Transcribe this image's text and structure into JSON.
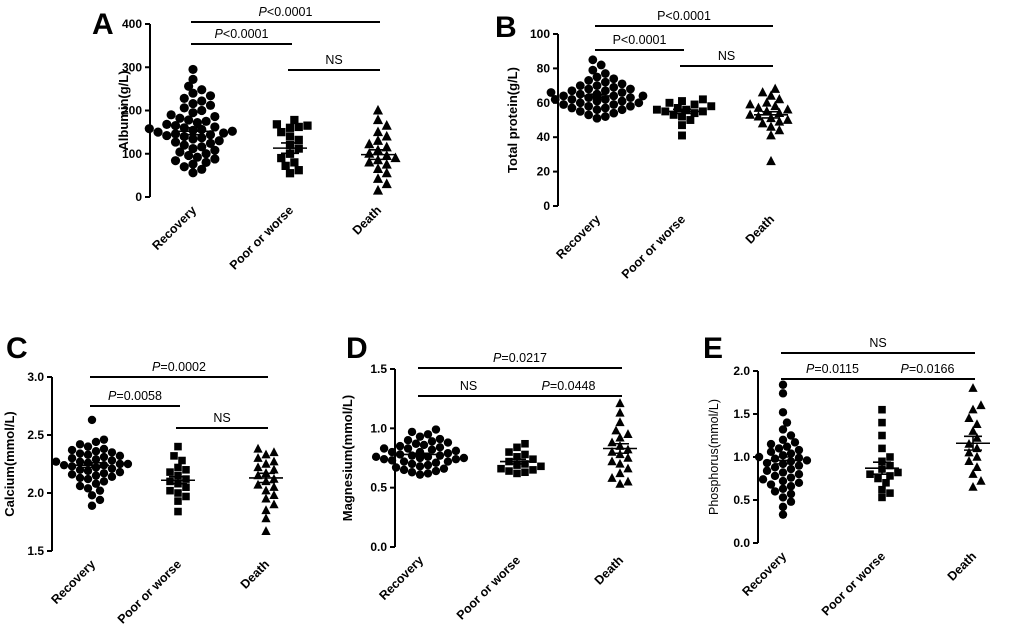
{
  "chart_data": [
    {
      "type": "scatter",
      "panel": "A",
      "ylabel": "Albumin(g/L)",
      "ylim": [
        0,
        400
      ],
      "yticks": [
        0,
        100,
        200,
        300,
        400
      ],
      "ytick_labels": [
        "0",
        "100",
        "200",
        "300",
        "400"
      ],
      "categories": [
        "Recovery",
        "Poor or worse",
        "Death"
      ],
      "means": [
        152,
        113,
        98
      ],
      "sems": [
        8,
        12,
        11
      ],
      "groups": [
        {
          "name": "Recovery",
          "marker": "circle",
          "values": [
            295,
            272,
            256,
            248,
            240,
            234,
            228,
            222,
            216,
            212,
            206,
            200,
            195,
            190,
            186,
            182,
            178,
            175,
            172,
            168,
            165,
            162,
            160,
            158,
            156,
            154,
            152,
            150,
            148,
            146,
            144,
            142,
            140,
            137,
            134,
            130,
            127,
            124,
            120,
            116,
            112,
            108,
            104,
            100,
            96,
            92,
            88,
            84,
            80,
            76,
            70,
            64,
            56
          ]
        },
        {
          "name": "Poor or worse",
          "marker": "square",
          "values": [
            178,
            168,
            165,
            162,
            160,
            150,
            140,
            132,
            120,
            112,
            100,
            90,
            80,
            72,
            62,
            55
          ]
        },
        {
          "name": "Death",
          "marker": "triangle",
          "values": [
            200,
            178,
            165,
            150,
            140,
            130,
            122,
            115,
            108,
            100,
            95,
            90,
            85,
            80,
            75,
            65,
            55,
            42,
            30,
            15
          ]
        }
      ],
      "comparisons": [
        {
          "from": 0,
          "to": 2,
          "label_prefix": "P",
          "label": "<0.0001"
        },
        {
          "from": 0,
          "to": 1,
          "label_prefix": "P",
          "label": "<0.0001"
        },
        {
          "from": 1,
          "to": 2,
          "label_prefix": "",
          "label": "NS"
        }
      ]
    },
    {
      "type": "scatter",
      "panel": "B",
      "ylabel": "Total protein(g/L)",
      "ylim": [
        0,
        100
      ],
      "yticks": [
        0,
        20,
        40,
        60,
        80,
        100
      ],
      "ytick_labels": [
        "0",
        "20",
        "40",
        "60",
        "80",
        "100"
      ],
      "categories": [
        "Recovery",
        "Poor or worse",
        "Death"
      ],
      "means": [
        64,
        55,
        53
      ],
      "sems": [
        1,
        1.2,
        1.8
      ],
      "groups": [
        {
          "name": "Recovery",
          "marker": "circle",
          "values": [
            85,
            82,
            79,
            77,
            75,
            74,
            73,
            72,
            71,
            70,
            70,
            69,
            68,
            68,
            67,
            67,
            66,
            66,
            65,
            65,
            65,
            64,
            64,
            64,
            63,
            63,
            63,
            62,
            62,
            62,
            61,
            61,
            60,
            60,
            59,
            59,
            58,
            58,
            57,
            57,
            56,
            56,
            55,
            54,
            53,
            52,
            51
          ]
        },
        {
          "name": "Poor or worse",
          "marker": "square",
          "values": [
            62,
            61,
            60,
            59,
            58,
            57,
            56,
            56,
            55,
            55,
            54,
            53,
            52,
            50,
            47,
            41
          ]
        },
        {
          "name": "Death",
          "marker": "triangle",
          "values": [
            68,
            66,
            64,
            62,
            60,
            59,
            58,
            57,
            56,
            55,
            54,
            53,
            52,
            51,
            50,
            49,
            48,
            46,
            44,
            41,
            26
          ]
        }
      ],
      "comparisons": [
        {
          "from": 0,
          "to": 2,
          "label_prefix": "",
          "label": "P<0.0001"
        },
        {
          "from": 0,
          "to": 1,
          "label_prefix": "",
          "label": "P<0.0001"
        },
        {
          "from": 1,
          "to": 2,
          "label_prefix": "",
          "label": "NS"
        }
      ]
    },
    {
      "type": "scatter",
      "panel": "C",
      "ylabel": "Calcium(mmol/L)",
      "ylim": [
        1.5,
        3.0
      ],
      "yticks": [
        1.5,
        2.0,
        2.5,
        3.0
      ],
      "ytick_labels": [
        "1.5",
        "2.0",
        "2.5",
        "3.0"
      ],
      "categories": [
        "Recovery",
        "Poor or worse",
        "Death"
      ],
      "means": [
        2.24,
        2.11,
        2.13
      ],
      "sems": [
        0.02,
        0.03,
        0.04
      ],
      "groups": [
        {
          "name": "Recovery",
          "marker": "circle",
          "values": [
            2.63,
            2.46,
            2.44,
            2.42,
            2.4,
            2.38,
            2.37,
            2.36,
            2.35,
            2.34,
            2.33,
            2.32,
            2.31,
            2.3,
            2.29,
            2.28,
            2.27,
            2.27,
            2.26,
            2.25,
            2.25,
            2.24,
            2.24,
            2.23,
            2.22,
            2.21,
            2.2,
            2.19,
            2.18,
            2.17,
            2.16,
            2.15,
            2.14,
            2.13,
            2.12,
            2.1,
            2.08,
            2.06,
            2.04,
            2.02,
            1.98,
            1.94,
            1.89
          ]
        },
        {
          "name": "Poor or worse",
          "marker": "square",
          "values": [
            2.4,
            2.32,
            2.28,
            2.22,
            2.2,
            2.18,
            2.15,
            2.12,
            2.1,
            2.08,
            2.05,
            2.02,
            2.0,
            1.97,
            1.93,
            1.84
          ]
        },
        {
          "name": "Death",
          "marker": "triangle",
          "values": [
            2.38,
            2.35,
            2.33,
            2.3,
            2.27,
            2.25,
            2.22,
            2.2,
            2.17,
            2.15,
            2.12,
            2.1,
            2.07,
            2.05,
            2.02,
            1.98,
            1.95,
            1.9,
            1.85,
            1.78,
            1.67
          ]
        }
      ],
      "comparisons": [
        {
          "from": 0,
          "to": 2,
          "label_prefix": "P",
          "label": "=0.0002"
        },
        {
          "from": 0,
          "to": 1,
          "label_prefix": "P",
          "label": "=0.0058"
        },
        {
          "from": 1,
          "to": 2,
          "label_prefix": "",
          "label": "NS"
        }
      ]
    },
    {
      "type": "scatter",
      "panel": "D",
      "ylabel": "Magnesium(mmol/L)",
      "ylim": [
        0.0,
        1.5
      ],
      "yticks": [
        0.0,
        0.5,
        1.0,
        1.5
      ],
      "ytick_labels": [
        "0.0",
        "0.5",
        "1.0",
        "1.5"
      ],
      "categories": [
        "Recovery",
        "Poor or worse",
        "Death"
      ],
      "means": [
        0.78,
        0.72,
        0.83
      ],
      "sems": [
        0.01,
        0.02,
        0.04
      ],
      "groups": [
        {
          "name": "Recovery",
          "marker": "circle",
          "values": [
            0.99,
            0.97,
            0.95,
            0.93,
            0.91,
            0.9,
            0.89,
            0.88,
            0.87,
            0.86,
            0.85,
            0.84,
            0.83,
            0.83,
            0.82,
            0.81,
            0.8,
            0.8,
            0.79,
            0.79,
            0.78,
            0.78,
            0.77,
            0.77,
            0.76,
            0.76,
            0.75,
            0.75,
            0.74,
            0.74,
            0.73,
            0.72,
            0.72,
            0.71,
            0.7,
            0.69,
            0.68,
            0.67,
            0.66,
            0.65,
            0.64,
            0.63,
            0.62,
            0.61
          ]
        },
        {
          "name": "Poor or worse",
          "marker": "square",
          "values": [
            0.87,
            0.84,
            0.8,
            0.78,
            0.76,
            0.74,
            0.72,
            0.7,
            0.69,
            0.68,
            0.66,
            0.65,
            0.64,
            0.63,
            0.62
          ]
        },
        {
          "name": "Death",
          "marker": "triangle",
          "values": [
            1.21,
            1.13,
            1.05,
            0.98,
            0.95,
            0.92,
            0.88,
            0.85,
            0.82,
            0.8,
            0.78,
            0.75,
            0.72,
            0.7,
            0.66,
            0.62,
            0.58,
            0.55,
            0.53
          ]
        }
      ],
      "comparisons": [
        {
          "from": 0,
          "to": 2,
          "label_prefix": "P",
          "label": "=0.0217"
        },
        {
          "from": 0,
          "to": 1,
          "label_prefix": "",
          "label": "NS"
        },
        {
          "from": 1,
          "to": 2,
          "label_prefix": "P",
          "label": "=0.0448"
        }
      ]
    },
    {
      "type": "scatter",
      "panel": "E",
      "ylabel": "Phosphorus(mmol/L)",
      "ylim": [
        0.0,
        2.0
      ],
      "yticks": [
        0.0,
        0.5,
        1.0,
        1.5,
        2.0
      ],
      "ytick_labels": [
        "0.0",
        "0.5",
        "1.0",
        "1.5",
        "2.0"
      ],
      "categories": [
        "Recovery",
        "Poor or worse",
        "Death"
      ],
      "means": [
        0.96,
        0.87,
        1.16
      ],
      "sems": [
        0.04,
        0.07,
        0.08
      ],
      "groups": [
        {
          "name": "Recovery",
          "marker": "circle",
          "values": [
            1.84,
            1.74,
            1.52,
            1.4,
            1.32,
            1.25,
            1.2,
            1.17,
            1.15,
            1.12,
            1.1,
            1.08,
            1.06,
            1.04,
            1.02,
            1.0,
            0.99,
            0.98,
            0.96,
            0.95,
            0.93,
            0.92,
            0.9,
            0.88,
            0.86,
            0.84,
            0.82,
            0.8,
            0.78,
            0.76,
            0.74,
            0.72,
            0.7,
            0.68,
            0.66,
            0.63,
            0.6,
            0.57,
            0.53,
            0.48,
            0.42,
            0.33
          ]
        },
        {
          "name": "Poor or worse",
          "marker": "square",
          "values": [
            1.55,
            1.4,
            1.25,
            1.1,
            1.0,
            0.95,
            0.9,
            0.86,
            0.82,
            0.8,
            0.78,
            0.75,
            0.7,
            0.62,
            0.58,
            0.53
          ]
        },
        {
          "name": "Death",
          "marker": "triangle",
          "values": [
            1.8,
            1.6,
            1.55,
            1.45,
            1.38,
            1.3,
            1.22,
            1.15,
            1.1,
            1.05,
            1.0,
            0.95,
            0.88,
            0.8,
            0.72,
            0.65
          ]
        }
      ],
      "comparisons": [
        {
          "from": 0,
          "to": 2,
          "label_prefix": "",
          "label": "NS"
        },
        {
          "from": 0,
          "to": 1,
          "label_prefix": "P",
          "label": "=0.0115"
        },
        {
          "from": 1,
          "to": 2,
          "label_prefix": "P",
          "label": "=0.0166"
        }
      ]
    }
  ]
}
